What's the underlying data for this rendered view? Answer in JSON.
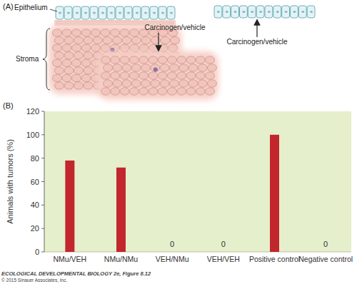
{
  "diagram": {
    "panel_label": "(A)",
    "epithelium_label": "Epithelium",
    "stroma_label": "Stroma",
    "treatments": [
      "Carcinogen/vehicle",
      "Carcinogen/vehicle"
    ]
  },
  "panel_b_label": "(B)",
  "chart_data": {
    "type": "bar",
    "y_label": "Animals with tumors (%)",
    "categories": [
      "NMu/VEH",
      "NMu/NMu",
      "VEH/NMu",
      "VEH/VEH",
      "Positive control",
      "Negative control"
    ],
    "values": [
      78,
      72,
      0,
      0,
      100,
      0
    ],
    "value_labels": [
      null,
      null,
      "0",
      "0",
      null,
      "0"
    ],
    "data_labels": true,
    "color": "#c1272d",
    "ylim": [
      0,
      120
    ],
    "yticks": [
      0,
      20,
      40,
      60,
      80,
      100,
      120
    ],
    "grid": false
  },
  "footer": {
    "title": "ECOLOGICAL DEVELOPMENTAL BIOLOGY 2e, Figure 8.12",
    "copyright": "© 2015 Sinauer Associates, Inc."
  }
}
